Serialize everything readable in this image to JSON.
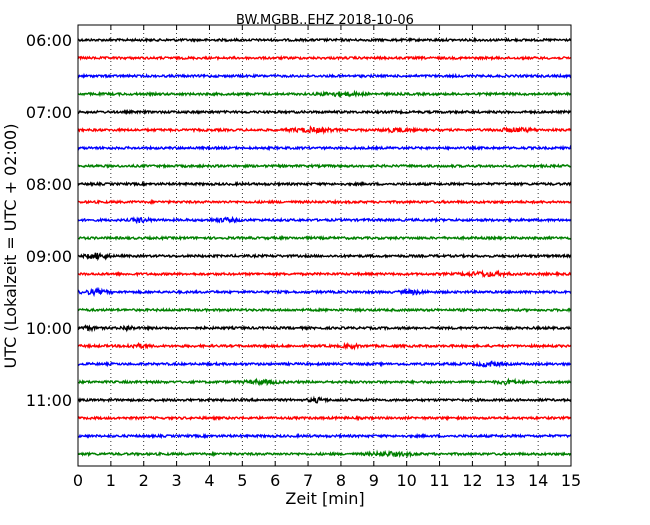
{
  "chart_data": {
    "type": "line",
    "title": "BW.MGBB..EHZ 2018-10-06",
    "xlabel": "Zeit  [min]",
    "ylabel": "UTC (Lokalzeit = UTC + 02:00)",
    "x_ticks": [
      "0",
      "1",
      "2",
      "3",
      "4",
      "5",
      "6",
      "7",
      "8",
      "9",
      "10",
      "11",
      "12",
      "13",
      "14",
      "15"
    ],
    "xlim": [
      0,
      15
    ],
    "y_tick_labels": [
      "06:00",
      "07:00",
      "08:00",
      "09:00",
      "10:00",
      "11:00"
    ],
    "trace_interval_min": 15,
    "trace_count": 24,
    "trace_colors": [
      "#000000",
      "#ff0000",
      "#0000ff",
      "#008000"
    ],
    "grid": "vertical dotted",
    "trace_rows": [
      {
        "start": "06:00",
        "color": "#000000"
      },
      {
        "start": "06:15",
        "color": "#ff0000"
      },
      {
        "start": "06:30",
        "color": "#0000ff"
      },
      {
        "start": "06:45",
        "color": "#008000"
      },
      {
        "start": "07:00",
        "color": "#000000"
      },
      {
        "start": "07:15",
        "color": "#ff0000"
      },
      {
        "start": "07:30",
        "color": "#0000ff"
      },
      {
        "start": "07:45",
        "color": "#008000"
      },
      {
        "start": "08:00",
        "color": "#000000"
      },
      {
        "start": "08:15",
        "color": "#ff0000"
      },
      {
        "start": "08:30",
        "color": "#0000ff"
      },
      {
        "start": "08:45",
        "color": "#008000"
      },
      {
        "start": "09:00",
        "color": "#000000"
      },
      {
        "start": "09:15",
        "color": "#ff0000"
      },
      {
        "start": "09:30",
        "color": "#0000ff"
      },
      {
        "start": "09:45",
        "color": "#008000"
      },
      {
        "start": "10:00",
        "color": "#000000"
      },
      {
        "start": "10:15",
        "color": "#ff0000"
      },
      {
        "start": "10:30",
        "color": "#0000ff"
      },
      {
        "start": "10:45",
        "color": "#008000"
      },
      {
        "start": "11:00",
        "color": "#000000"
      },
      {
        "start": "11:15",
        "color": "#ff0000"
      },
      {
        "start": "11:30",
        "color": "#0000ff"
      },
      {
        "start": "11:45",
        "color": "#008000"
      }
    ]
  }
}
